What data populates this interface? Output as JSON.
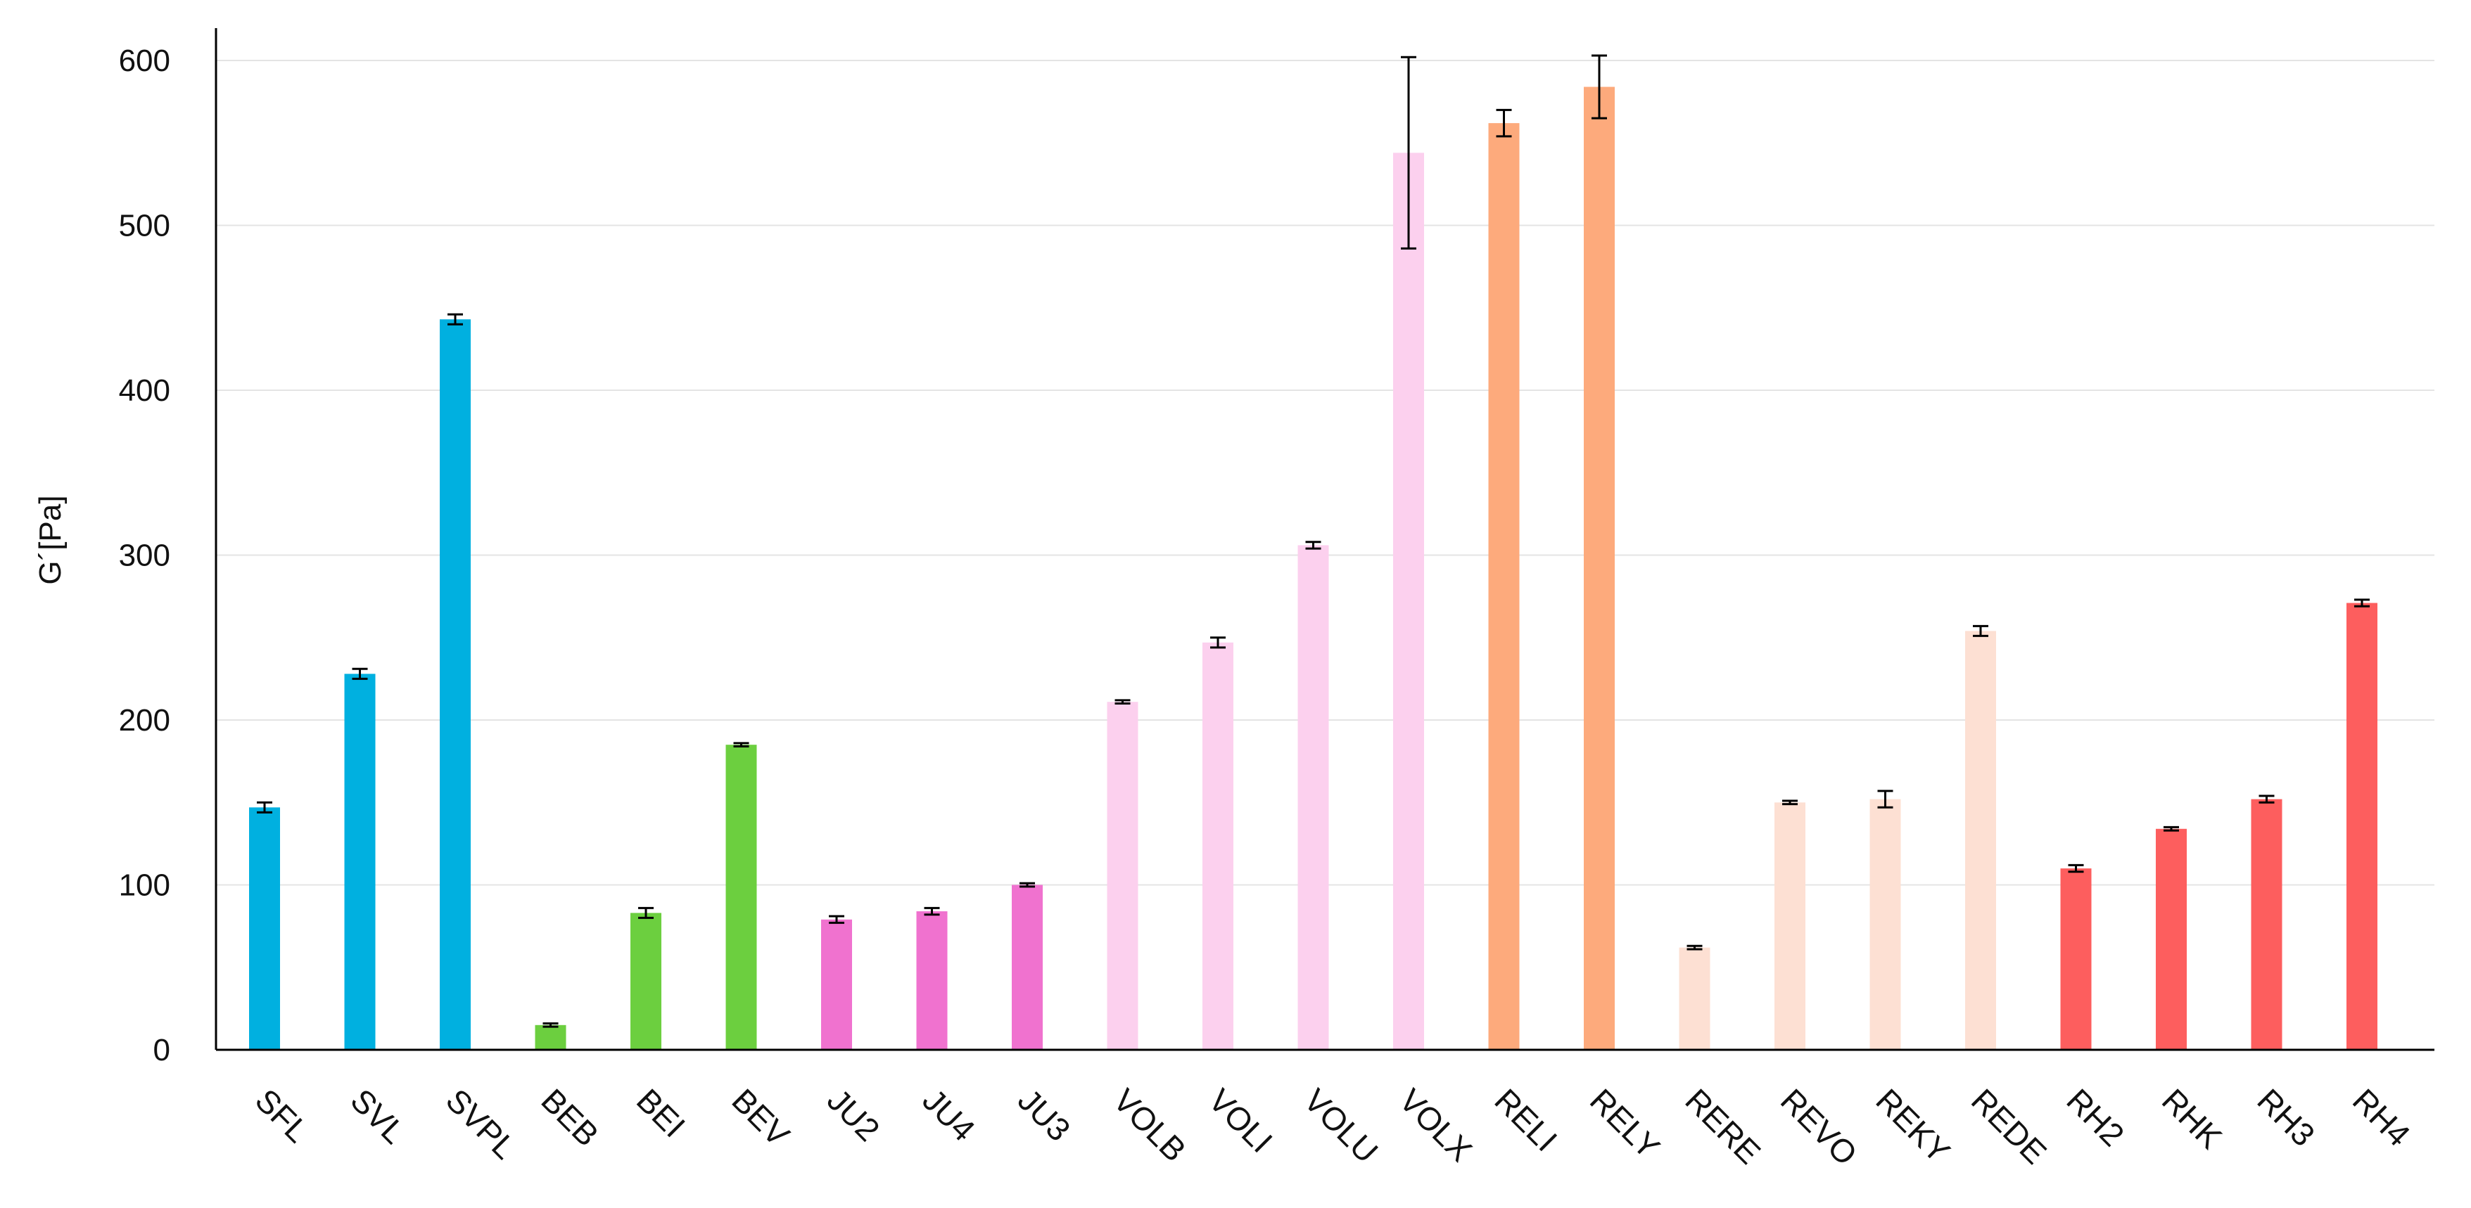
{
  "chart_data": {
    "type": "bar",
    "title": "",
    "xlabel": "",
    "ylabel": "G´[Pa]",
    "ylim": [
      0,
      600
    ],
    "yticks": [
      0,
      100,
      200,
      300,
      400,
      500,
      600
    ],
    "grid": true,
    "legend": "none",
    "categories": [
      "SFL",
      "SVL",
      "SVPL",
      "BEB",
      "BEI",
      "BEV",
      "JU2",
      "JU4",
      "JU3",
      "VOLB",
      "VOLI",
      "VOLU",
      "VOLX",
      "RELI",
      "RELY",
      "RERE",
      "REVO",
      "REKY",
      "REDE",
      "RH2",
      "RHK",
      "RH3",
      "RH4"
    ],
    "values": [
      147,
      228,
      443,
      15,
      83,
      185,
      79,
      84,
      100,
      211,
      247,
      306,
      544,
      562,
      584,
      62,
      150,
      152,
      254,
      110,
      134,
      152,
      271
    ],
    "errors": [
      3,
      3,
      3,
      1,
      3,
      1,
      2,
      2,
      1,
      1,
      3,
      2,
      58,
      8,
      19,
      1,
      1,
      5,
      3,
      2,
      1,
      2,
      2
    ],
    "colors": [
      "#00b0e0",
      "#00b0e0",
      "#00b0e0",
      "#6ccf3f",
      "#6ccf3f",
      "#6ccf3f",
      "#f072cf",
      "#f072cf",
      "#f072cf",
      "#fcd0ee",
      "#fcd0ee",
      "#fcd0ee",
      "#fcd0ee",
      "#fdaa7c",
      "#fdaa7c",
      "#fde0d3",
      "#fde0d3",
      "#fde0d3",
      "#fde0d3",
      "#fd5e5e",
      "#fd5e5e",
      "#fd5e5e",
      "#fd5e5e"
    ]
  }
}
